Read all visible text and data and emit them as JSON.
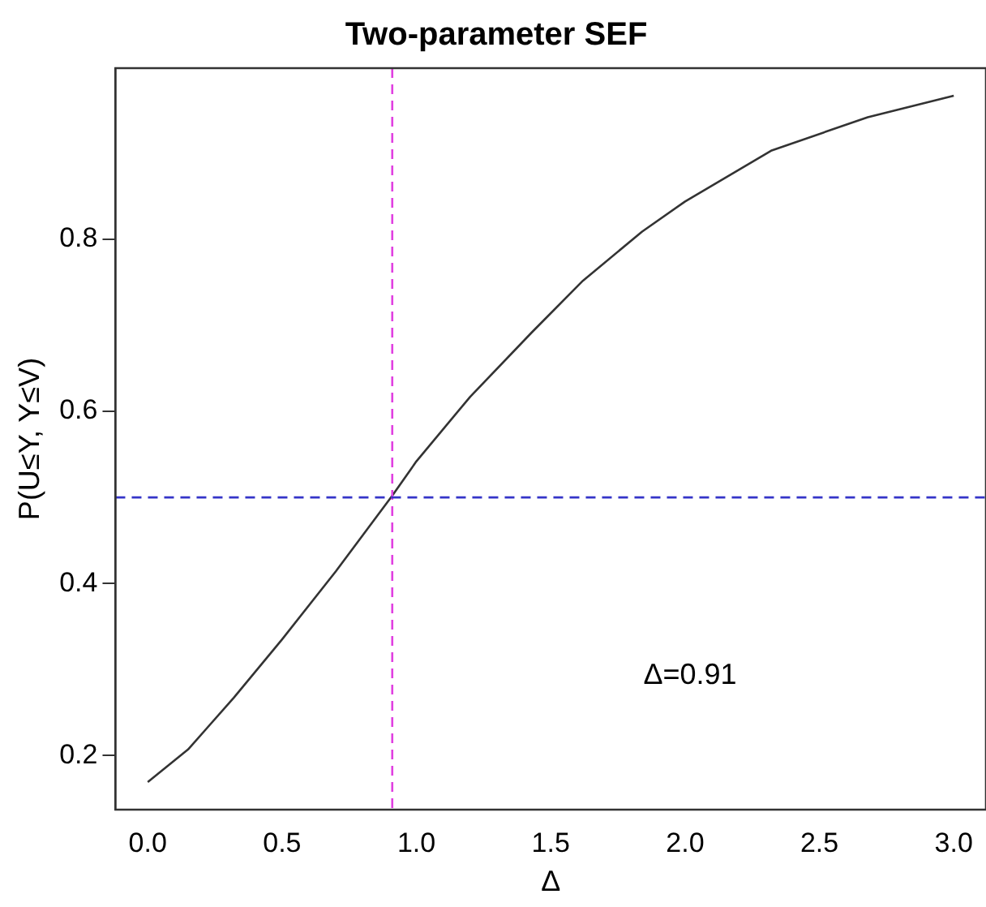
{
  "chart_data": {
    "type": "line",
    "title": "Two-parameter SEF",
    "xlabel": "Δ",
    "ylabel": "P(U≤Y, Y≤V)",
    "x": [
      0,
      0.15,
      0.32,
      0.5,
      0.7,
      0.91,
      1.0,
      1.2,
      1.43,
      1.62,
      1.84,
      2.0,
      2.32,
      2.68,
      3.0
    ],
    "series": [
      {
        "color": "#333333",
        "values": [
          0.169,
          0.207,
          0.267,
          0.335,
          0.414,
          0.502,
          0.542,
          0.617,
          0.692,
          0.752,
          0.809,
          0.844,
          0.903,
          0.942,
          0.967
        ]
      }
    ],
    "xlim": [
      -0.12,
      3.12
    ],
    "xticks": [
      {
        "value": 0,
        "label": "0.0"
      },
      0.5,
      {
        "value": 1,
        "label": "1.0"
      },
      1.5,
      {
        "value": 2,
        "label": "2.0"
      },
      2.5,
      {
        "value": 3,
        "label": "3.0"
      }
    ],
    "ylim": [
      0.137,
      0.999
    ],
    "yticks": [
      0.2,
      0.4,
      0.6,
      0.8
    ],
    "ref_lines": [
      {
        "axis": "x",
        "value": 0.91,
        "color": "#e040e0",
        "line_style": "dashed"
      },
      {
        "axis": "y",
        "value": 0.5,
        "color": "#3535c8",
        "line_style": "dashed"
      }
    ],
    "annotations": [
      "Δ=0.91"
    ],
    "grid": false,
    "legend": false,
    "marker": "none",
    "line_style": "solid"
  }
}
